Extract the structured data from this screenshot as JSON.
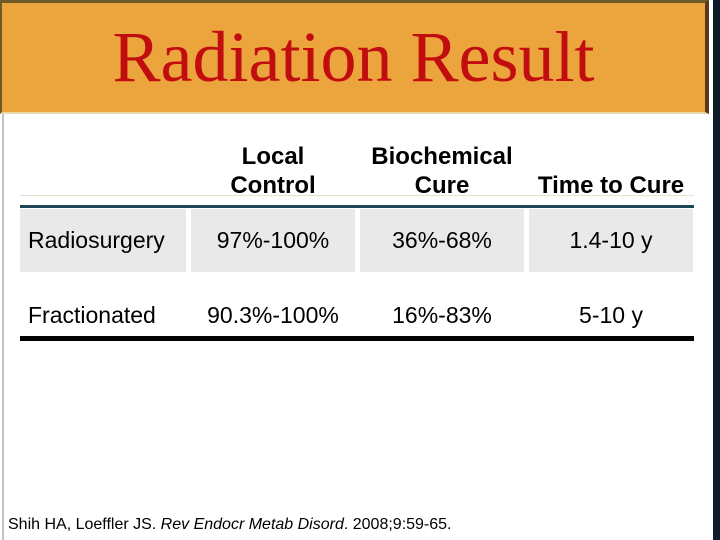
{
  "banner": {
    "title": "Radiation Result"
  },
  "table": {
    "headers": [
      {
        "line1": "",
        "line2": ""
      },
      {
        "line1": "Local",
        "line2": "Control"
      },
      {
        "line1": "Biochemical",
        "line2": "Cure"
      },
      {
        "line1": "",
        "line2": "Time to Cure"
      }
    ],
    "rows": [
      {
        "label": "Radiosurgery",
        "local_control": "97%-100%",
        "biochemical_cure": "36%-68%",
        "time_to_cure": "1.4-10 y"
      },
      {
        "label": "Fractionated",
        "local_control": "90.3%-100%",
        "biochemical_cure": "16%-83%",
        "time_to_cure": "5-10 y"
      }
    ]
  },
  "citation": {
    "authors": "Shih HA, Loeffler JS. ",
    "journal_italic": "Rev Endocr Metab Disord",
    "tail": ". 2008;9:59-65."
  },
  "colors": {
    "banner_orange": "#ECA43D",
    "banner_border_dark": "#6D5A28",
    "title_red": "#C20D10",
    "header_rule_teal": "#1D4759",
    "row_shade_gray": "#E9E9E9",
    "bottom_rule_black": "#000000",
    "right_edge_bar": "#101B29"
  }
}
